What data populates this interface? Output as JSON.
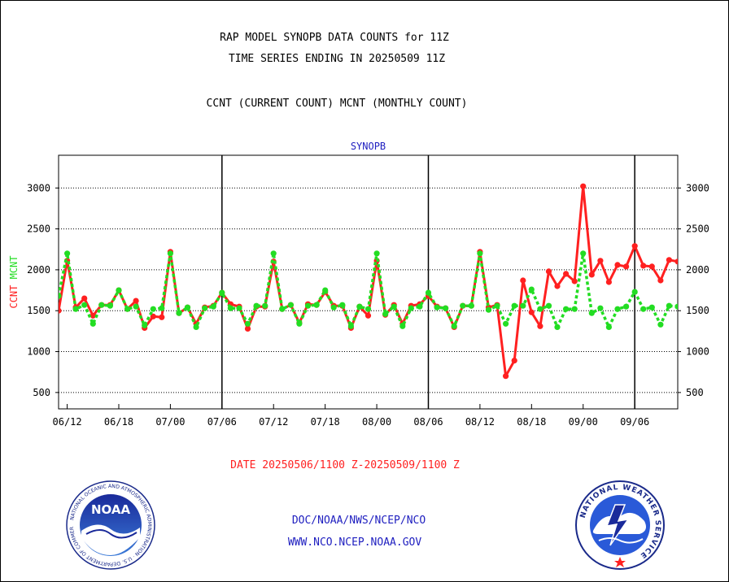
{
  "titles": {
    "line1": "RAP MODEL SYNOPB DATA COUNTS for 11Z",
    "line2": "TIME SERIES ENDING IN 20250509 11Z",
    "line3": "CCNT (CURRENT COUNT) MCNT (MONTHLY COUNT)"
  },
  "footer": {
    "date_range": "DATE 20250506/1100 Z-20250509/1100 Z",
    "org": "DOC/NOAA/NWS/NCEP/NCO",
    "url": "WWW.NCO.NCEP.NOAA.GOV"
  },
  "logos": {
    "noaa": "NOAA",
    "noaa_ring": "NATIONAL OCEANIC AND ATMOSPHERIC ADMINISTRATION · U.S. DEPARTMENT OF COMMERCE ·",
    "nws_ring": "NATIONAL WEATHER SERVICE"
  },
  "colors": {
    "ccnt": "#ff2020",
    "mcnt": "#22dd22",
    "title_blue": "#2020c0",
    "date_red": "#ff2020"
  },
  "chart_data": {
    "type": "line",
    "title": "SYNOPB",
    "ylabel_ccnt": "CCNT",
    "ylabel_mcnt": "MCNT",
    "ylim": [
      300,
      3400
    ],
    "yticks": [
      500,
      1000,
      1500,
      2000,
      2500,
      3000
    ],
    "xlim": [
      -1,
      71
    ],
    "xtick_positions": [
      0,
      6,
      12,
      18,
      24,
      30,
      36,
      42,
      48,
      54,
      60,
      66
    ],
    "xtick_labels": [
      "06/12",
      "06/18",
      "07/00",
      "07/06",
      "07/12",
      "07/18",
      "08/00",
      "08/06",
      "08/12",
      "08/18",
      "09/00",
      "09/06"
    ],
    "day_boundaries": [
      18,
      42,
      66
    ],
    "grid": true,
    "series": [
      {
        "name": "CCNT",
        "style": "solid",
        "x": [
          -1,
          0,
          1,
          2,
          3,
          4,
          5,
          6,
          7,
          8,
          9,
          10,
          11,
          12,
          13,
          14,
          15,
          16,
          17,
          18,
          19,
          20,
          21,
          22,
          23,
          24,
          25,
          26,
          27,
          28,
          29,
          30,
          31,
          32,
          33,
          34,
          35,
          36,
          37,
          38,
          39,
          40,
          41,
          42,
          43,
          44,
          45,
          46,
          47,
          48,
          49,
          50,
          51,
          52,
          53,
          54,
          55,
          56,
          57,
          58,
          59,
          60,
          61,
          62,
          63,
          64,
          65,
          66,
          67,
          68,
          69,
          70,
          71
        ],
        "values": [
          1500,
          2110,
          1540,
          1650,
          1440,
          1570,
          1570,
          1750,
          1520,
          1620,
          1290,
          1430,
          1420,
          2220,
          1470,
          1540,
          1340,
          1540,
          1560,
          1720,
          1580,
          1550,
          1280,
          1550,
          1550,
          2100,
          1520,
          1570,
          1350,
          1580,
          1570,
          1730,
          1560,
          1560,
          1290,
          1550,
          1440,
          2110,
          1450,
          1570,
          1340,
          1560,
          1580,
          1680,
          1550,
          1530,
          1300,
          1560,
          1560,
          2220,
          1540,
          1570,
          700,
          890,
          1870,
          1480,
          1310,
          1980,
          1800,
          1950,
          1860,
          3020,
          1940,
          2110,
          1850,
          2060,
          2040,
          2290,
          2050,
          2040,
          1870,
          2120,
          2100
        ]
      },
      {
        "name": "MCNT",
        "style": "dotted",
        "x": [
          -1,
          0,
          1,
          2,
          3,
          4,
          5,
          6,
          7,
          8,
          9,
          10,
          11,
          12,
          13,
          14,
          15,
          16,
          17,
          18,
          19,
          20,
          21,
          22,
          23,
          24,
          25,
          26,
          27,
          28,
          29,
          30,
          31,
          32,
          33,
          34,
          35,
          36,
          37,
          38,
          39,
          40,
          41,
          42,
          43,
          44,
          45,
          46,
          47,
          48,
          49,
          50,
          51,
          52,
          53,
          54,
          55,
          56,
          57,
          58,
          59,
          60,
          61,
          62,
          63,
          64,
          65,
          66,
          67,
          68,
          69,
          70,
          71
        ],
        "values": [
          1680,
          2200,
          1520,
          1570,
          1340,
          1570,
          1560,
          1750,
          1520,
          1550,
          1320,
          1520,
          1530,
          2200,
          1470,
          1540,
          1300,
          1530,
          1550,
          1720,
          1530,
          1530,
          1340,
          1560,
          1560,
          2200,
          1520,
          1570,
          1340,
          1560,
          1570,
          1750,
          1540,
          1570,
          1310,
          1550,
          1520,
          2200,
          1460,
          1550,
          1310,
          1530,
          1550,
          1720,
          1540,
          1530,
          1310,
          1560,
          1560,
          2200,
          1510,
          1560,
          1340,
          1560,
          1560,
          1760,
          1520,
          1560,
          1300,
          1520,
          1520,
          2200,
          1470,
          1530,
          1300,
          1520,
          1550,
          1730,
          1520,
          1540,
          1330,
          1560,
          1550
        ]
      }
    ]
  }
}
